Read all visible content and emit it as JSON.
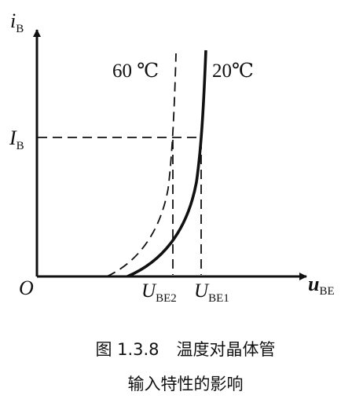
{
  "axes": {
    "y_label_main": "i",
    "y_label_sub": "B",
    "x_label_main": "u",
    "x_label_sub": "BE",
    "origin": "O"
  },
  "curves": {
    "hot_label": "60 ℃",
    "cold_label": "20℃"
  },
  "markers": {
    "ib_main": "I",
    "ib_sub": "B",
    "ube2_main": "U",
    "ube2_sub": "BE2",
    "ube1_main": "U",
    "ube1_sub": "BE1"
  },
  "caption": {
    "line1_number": "图 1.3.8",
    "line1_title": "温度对晶体管",
    "line2": "输入特性的影响"
  }
}
